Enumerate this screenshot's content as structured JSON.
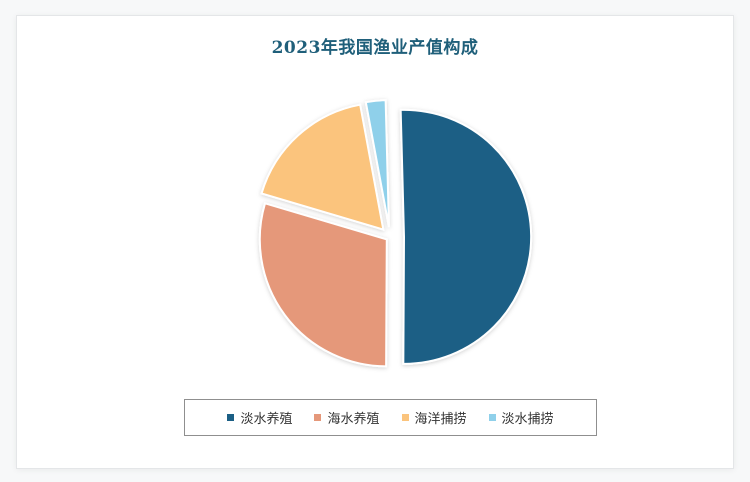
{
  "chart_data": {
    "type": "pie",
    "title": "2023年我国渔业产值构成",
    "slices": [
      {
        "name": "淡水养殖",
        "value": 50.5,
        "color": "#1b5f85"
      },
      {
        "name": "海水养殖",
        "value": 29.5,
        "color": "#e5987a"
      },
      {
        "name": "海洋捕捞",
        "value": 17.5,
        "color": "#fbc47d"
      },
      {
        "name": "淡水捕捞",
        "value": 2.5,
        "color": "#8fd0ea"
      }
    ],
    "legend_position": "bottom"
  }
}
